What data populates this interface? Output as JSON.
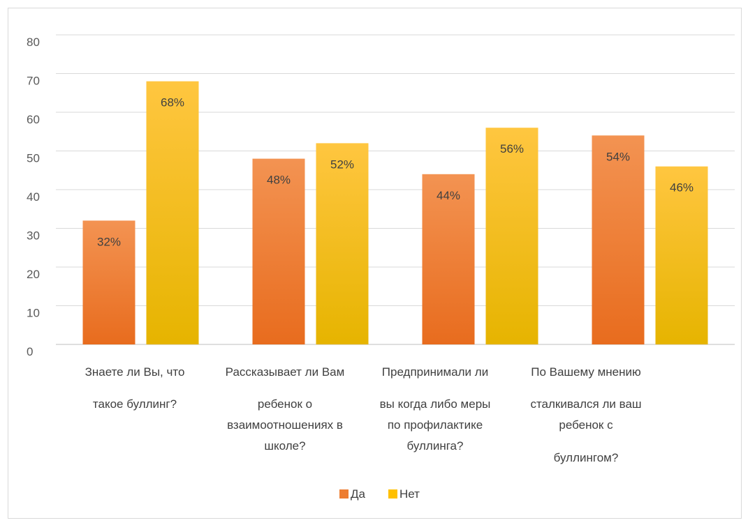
{
  "chart_data": {
    "type": "bar",
    "ylim": [
      0,
      80
    ],
    "yticks": [
      0,
      10,
      20,
      30,
      40,
      50,
      60,
      70,
      80
    ],
    "grid": true,
    "legend_position": "bottom",
    "categories": [
      [
        "Знаете ли Вы, что",
        "такое  буллинг?"
      ],
      [
        "Рассказывает ли Вам",
        "ребенок о",
        "взаимоотношениях в",
        "школе?"
      ],
      [
        "Предпринимали ли",
        "вы когда либо меры",
        "по профилактике",
        "буллинга?"
      ],
      [
        "По Вашему мнению",
        "сталкивался ли ваш",
        "ребенок с",
        "буллингом?"
      ]
    ],
    "series": [
      {
        "name": "Да",
        "values": [
          32,
          48,
          44,
          54
        ],
        "labels": [
          "32%",
          "48%",
          "44%",
          "54%"
        ],
        "color": "#ed7d31"
      },
      {
        "name": "Нет",
        "values": [
          68,
          52,
          56,
          46
        ],
        "labels": [
          "68%",
          "52%",
          "56%",
          "46%"
        ],
        "color": "#ffc000"
      }
    ]
  }
}
